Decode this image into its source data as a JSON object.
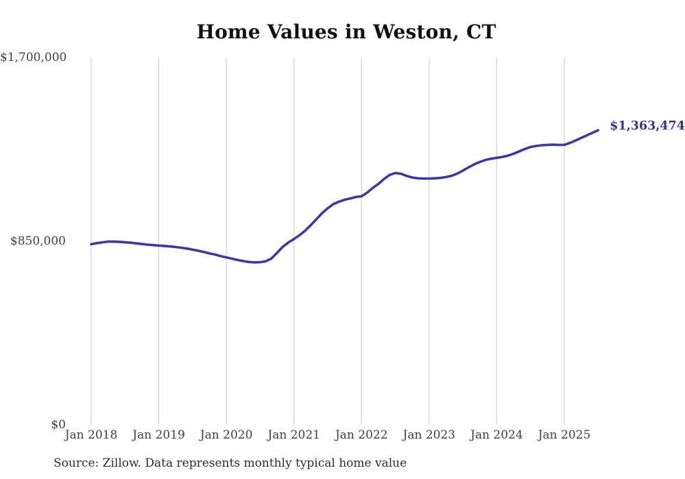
{
  "colors": {
    "line": "#3b399e",
    "grid": "#c9c9c9",
    "title": "#111111",
    "axis_label": "#3f3f3f",
    "source": "#2b2b2b",
    "end_label": "#33318f"
  },
  "chart_data": {
    "type": "line",
    "title": "Home Values in Weston, CT",
    "source_note": "Source: Zillow. Data represents monthly typical home value",
    "last_point_label": "$1,363,474",
    "last_point_value": 1363474,
    "frequency": "monthly",
    "x_start": "Jan 2018",
    "x_end": "Jul 2025",
    "ylim": [
      0,
      1700000
    ],
    "grid": "vertical-only",
    "legend": "none",
    "y_ticks": [
      {
        "label": "$1,700,000",
        "value": 1700000
      },
      {
        "label": "$850,000",
        "value": 850000
      },
      {
        "label": "$0",
        "value": 0
      }
    ],
    "x_ticks": [
      {
        "label": "Jan 2018",
        "month_index": 0
      },
      {
        "label": "Jan 2019",
        "month_index": 12
      },
      {
        "label": "Jan 2020",
        "month_index": 24
      },
      {
        "label": "Jan 2021",
        "month_index": 36
      },
      {
        "label": "Jan 2022",
        "month_index": 48
      },
      {
        "label": "Jan 2023",
        "month_index": 60
      },
      {
        "label": "Jan 2024",
        "month_index": 72
      },
      {
        "label": "Jan 2025",
        "month_index": 84
      }
    ],
    "series": [
      {
        "name": "Typical home value",
        "values": [
          836000,
          841000,
          845000,
          848000,
          848000,
          847000,
          845000,
          843000,
          840000,
          837000,
          834000,
          832000,
          830000,
          828000,
          826000,
          823000,
          820000,
          816000,
          811000,
          806000,
          800000,
          794000,
          788000,
          781000,
          775000,
          769000,
          763000,
          758000,
          754000,
          752000,
          753000,
          757000,
          770000,
          796000,
          824000,
          844000,
          860000,
          878000,
          899000,
          925000,
          952000,
          980000,
          1003000,
          1022000,
          1033000,
          1042000,
          1048000,
          1055000,
          1058000,
          1075000,
          1097000,
          1115000,
          1138000,
          1157000,
          1166000,
          1162000,
          1152000,
          1145000,
          1141000,
          1140000,
          1140000,
          1141000,
          1143000,
          1147000,
          1153000,
          1163000,
          1177000,
          1192000,
          1206000,
          1217000,
          1226000,
          1232000,
          1236000,
          1240000,
          1246000,
          1255000,
          1266000,
          1277000,
          1286000,
          1291000,
          1294000,
          1296000,
          1297000,
          1296000,
          1296000,
          1305000,
          1316000,
          1328000,
          1340000,
          1352000,
          1363474
        ]
      }
    ]
  }
}
